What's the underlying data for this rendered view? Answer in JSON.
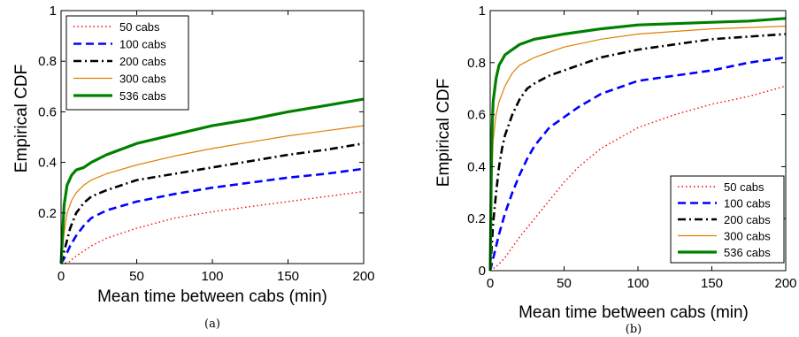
{
  "chart_data": [
    {
      "type": "line",
      "caption": "(a)",
      "xlabel": "Mean time between cabs (min)",
      "ylabel": "Empirical CDF",
      "xlim": [
        0,
        200
      ],
      "ylim": [
        0,
        1
      ],
      "xticks": [
        0,
        50,
        100,
        150,
        200
      ],
      "yticks": [
        0.2,
        0.4,
        0.6,
        0.8,
        1
      ],
      "ytick_labels": [
        "0.2",
        "0.4",
        "0.6",
        "0.8",
        "1"
      ],
      "grid": false,
      "legend_position": "top-left",
      "series": [
        {
          "name": "50 cabs",
          "color": "#ff0000",
          "style": "dotted",
          "x": [
            0,
            5,
            10,
            20,
            30,
            50,
            75,
            100,
            125,
            150,
            175,
            200
          ],
          "y": [
            0,
            0.005,
            0.03,
            0.07,
            0.1,
            0.14,
            0.18,
            0.205,
            0.225,
            0.245,
            0.265,
            0.285
          ]
        },
        {
          "name": "100 cabs",
          "color": "#0000ff",
          "style": "dashed",
          "x": [
            0,
            3,
            6,
            10,
            15,
            20,
            30,
            50,
            75,
            100,
            125,
            150,
            175,
            200
          ],
          "y": [
            0,
            0.03,
            0.07,
            0.11,
            0.15,
            0.18,
            0.21,
            0.245,
            0.275,
            0.3,
            0.32,
            0.34,
            0.355,
            0.375
          ]
        },
        {
          "name": "200 cabs",
          "color": "#000000",
          "style": "dashdot",
          "x": [
            0,
            3,
            6,
            10,
            15,
            20,
            30,
            50,
            75,
            100,
            125,
            150,
            175,
            200
          ],
          "y": [
            0,
            0.07,
            0.14,
            0.2,
            0.24,
            0.265,
            0.29,
            0.33,
            0.355,
            0.38,
            0.405,
            0.43,
            0.45,
            0.475
          ]
        },
        {
          "name": "300 cabs",
          "color": "#e08000",
          "style": "solid",
          "x": [
            0,
            2,
            4,
            7,
            10,
            15,
            20,
            30,
            50,
            75,
            100,
            125,
            150,
            175,
            200
          ],
          "y": [
            0,
            0.12,
            0.2,
            0.25,
            0.28,
            0.31,
            0.33,
            0.355,
            0.39,
            0.425,
            0.455,
            0.48,
            0.505,
            0.525,
            0.545
          ]
        },
        {
          "name": "536 cabs",
          "color": "#008000",
          "style": "thick",
          "x": [
            0,
            2,
            4,
            7,
            10,
            15,
            20,
            30,
            50,
            75,
            100,
            125,
            150,
            175,
            200
          ],
          "y": [
            0,
            0.23,
            0.31,
            0.35,
            0.37,
            0.38,
            0.4,
            0.43,
            0.475,
            0.51,
            0.545,
            0.57,
            0.6,
            0.625,
            0.65
          ]
        }
      ]
    },
    {
      "type": "line",
      "caption": "(b)",
      "xlabel": "Mean  time between cabs (min)",
      "ylabel": "Empirical CDF",
      "xlim": [
        0,
        200
      ],
      "ylim": [
        0,
        1
      ],
      "xticks": [
        0,
        50,
        100,
        150,
        200
      ],
      "yticks": [
        0,
        0.2,
        0.4,
        0.6,
        0.8,
        1
      ],
      "ytick_labels": [
        "0",
        "0.2",
        "0.4",
        "0.6",
        "0.8",
        "1"
      ],
      "grid": false,
      "legend_position": "bottom-right",
      "series": [
        {
          "name": "50 cabs",
          "color": "#ff0000",
          "style": "dotted",
          "x": [
            0,
            5,
            10,
            20,
            30,
            40,
            50,
            60,
            75,
            100,
            125,
            150,
            175,
            200
          ],
          "y": [
            0,
            0.02,
            0.05,
            0.13,
            0.2,
            0.27,
            0.34,
            0.4,
            0.47,
            0.55,
            0.6,
            0.64,
            0.67,
            0.71
          ]
        },
        {
          "name": "100 cabs",
          "color": "#0000ff",
          "style": "dashed",
          "x": [
            0,
            3,
            6,
            10,
            15,
            20,
            25,
            30,
            40,
            50,
            60,
            75,
            100,
            125,
            150,
            175,
            200
          ],
          "y": [
            0,
            0.07,
            0.14,
            0.22,
            0.3,
            0.37,
            0.43,
            0.48,
            0.55,
            0.59,
            0.63,
            0.68,
            0.73,
            0.75,
            0.77,
            0.8,
            0.82
          ]
        },
        {
          "name": "200 cabs",
          "color": "#000000",
          "style": "dashdot",
          "x": [
            0,
            2,
            4,
            6,
            8,
            10,
            15,
            20,
            25,
            30,
            40,
            50,
            75,
            100,
            125,
            150,
            175,
            200
          ],
          "y": [
            0,
            0.18,
            0.3,
            0.4,
            0.47,
            0.52,
            0.6,
            0.66,
            0.7,
            0.72,
            0.75,
            0.77,
            0.82,
            0.85,
            0.87,
            0.89,
            0.9,
            0.91
          ]
        },
        {
          "name": "300 cabs",
          "color": "#e08000",
          "style": "solid",
          "x": [
            0,
            1,
            2,
            4,
            6,
            8,
            10,
            15,
            20,
            30,
            40,
            50,
            75,
            100,
            125,
            150,
            175,
            200
          ],
          "y": [
            0,
            0.35,
            0.5,
            0.6,
            0.65,
            0.68,
            0.71,
            0.76,
            0.79,
            0.82,
            0.84,
            0.86,
            0.89,
            0.91,
            0.92,
            0.93,
            0.935,
            0.94
          ]
        },
        {
          "name": "536 cabs",
          "color": "#008000",
          "style": "thick",
          "x": [
            0,
            1,
            2,
            4,
            6,
            8,
            10,
            15,
            20,
            30,
            40,
            50,
            75,
            100,
            125,
            150,
            175,
            200
          ],
          "y": [
            0,
            0.5,
            0.65,
            0.74,
            0.79,
            0.81,
            0.83,
            0.85,
            0.87,
            0.89,
            0.9,
            0.91,
            0.93,
            0.945,
            0.95,
            0.955,
            0.96,
            0.97
          ]
        }
      ]
    }
  ]
}
